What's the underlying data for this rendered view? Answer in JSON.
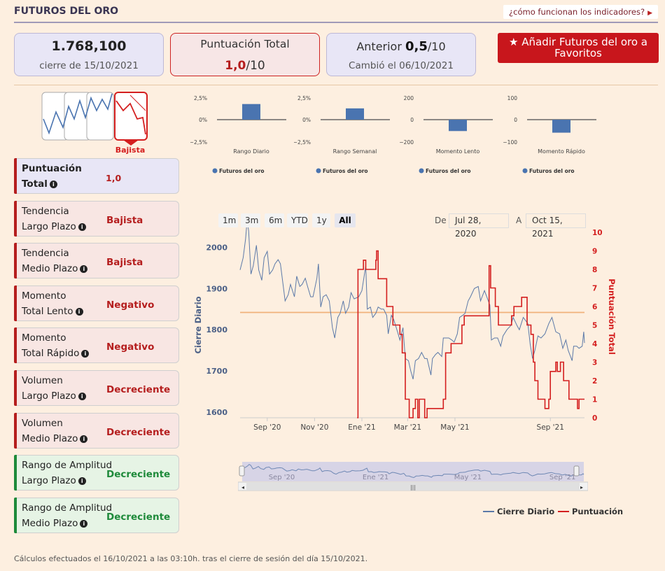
{
  "header": {
    "title": "FUTUROS DEL ORO",
    "help_link": "¿cómo funcionan los indicadores?"
  },
  "price_card": {
    "value": "1.768,100",
    "date": "cierre de 15/10/2021"
  },
  "score_card": {
    "label": "Puntuación Total",
    "value": "1,0",
    "max": "/10"
  },
  "previous_card": {
    "label": "Anterior",
    "value": "0,5",
    "max": "/10",
    "changed": "Cambió el 06/10/2021"
  },
  "favorite_button": {
    "label": "Añadir Futuros del oro a Favoritos"
  },
  "trend_icon": {
    "label": "Bajista"
  },
  "indicators": [
    {
      "line1": "Puntuación",
      "line2": "Total",
      "value": "1,0",
      "style": "total"
    },
    {
      "line1": "Tendencia",
      "line2": "Largo Plazo",
      "value": "Bajista",
      "style": "red"
    },
    {
      "line1": "Tendencia",
      "line2": "Medio Plazo",
      "value": "Bajista",
      "style": "red"
    },
    {
      "line1": "Momento",
      "line2": "Total Lento",
      "value": "Negativo",
      "style": "red"
    },
    {
      "line1": "Momento",
      "line2": "Total Rápido",
      "value": "Negativo",
      "style": "red"
    },
    {
      "line1": "Volumen",
      "line2": "Largo Plazo",
      "value": "Decreciente",
      "style": "red"
    },
    {
      "line1": "Volumen",
      "line2": "Medio Plazo",
      "value": "Decreciente",
      "style": "red"
    },
    {
      "line1": "Rango de Amplitud",
      "line2": "Largo Plazo",
      "value": "Decreciente",
      "style": "green"
    },
    {
      "line1": "Rango de Amplitud",
      "line2": "Medio Plazo",
      "value": "Decreciente",
      "style": "green"
    }
  ],
  "zoom_buttons": [
    "1m",
    "3m",
    "6m",
    "YTD",
    "1y",
    "All"
  ],
  "zoom_active": "All",
  "date_range": {
    "from_label": "De",
    "from": "Jul 28, 2020",
    "to_label": "A",
    "to": "Oct 15, 2021"
  },
  "legend": {
    "price": "Cierre Diario",
    "score": "Puntuación"
  },
  "footnote": "Cálculos efectuados el 16/10/2021 a las 03:10h. tras el cierre de sesión del día 15/10/2021.",
  "colors": {
    "price_line": "#5b79a8",
    "score_line": "#d41f1f",
    "bar": "#4a74b0",
    "reference": "#f0b27a"
  },
  "chart_data": [
    {
      "type": "bar",
      "categories": [
        "Rango Diario"
      ],
      "series": [
        {
          "name": "Futuros del oro",
          "values": [
            1.8
          ]
        }
      ],
      "ylim": [
        -2.5,
        2.5
      ],
      "yticks": [
        "2,5%",
        "0%",
        "−2,5%"
      ]
    },
    {
      "type": "bar",
      "categories": [
        "Rango Semanal"
      ],
      "series": [
        {
          "name": "Futuros del oro",
          "values": [
            1.3
          ]
        }
      ],
      "ylim": [
        -2.5,
        2.5
      ],
      "yticks": [
        "2,5%",
        "0%",
        "−2,5%"
      ]
    },
    {
      "type": "bar",
      "categories": [
        "Momento Lento"
      ],
      "series": [
        {
          "name": "Futuros del oro",
          "values": [
            -105
          ]
        }
      ],
      "ylim": [
        -200,
        200
      ],
      "yticks": [
        "200",
        "0",
        "−200"
      ]
    },
    {
      "type": "bar",
      "categories": [
        "Momento Rápido"
      ],
      "series": [
        {
          "name": "Futuros del oro",
          "values": [
            -60
          ]
        }
      ],
      "ylim": [
        -100,
        100
      ],
      "yticks": [
        "100",
        "0",
        "−100"
      ]
    },
    {
      "type": "line",
      "xlabels": [
        "Sep '20",
        "Nov '20",
        "Ene '21",
        "Mar '21",
        "May '21",
        "Sep '21"
      ],
      "xlabel_dates": [
        "2020-09-01",
        "2020-11-01",
        "2021-01-01",
        "2021-03-01",
        "2021-05-01",
        "2021-09-01"
      ],
      "xlim": [
        "2020-07-28",
        "2021-10-15"
      ],
      "ylabel": "Cierre Diario",
      "ylim": [
        1600,
        2050
      ],
      "yticks": [
        1600,
        1700,
        1800,
        1900,
        2000
      ],
      "y2label": "Puntuación Total",
      "y2lim": [
        0,
        10
      ],
      "y2ticks": [
        0,
        1,
        2,
        3,
        4,
        5,
        6,
        7,
        8,
        9,
        10
      ],
      "reference_line": 1842,
      "series": [
        {
          "name": "Cierre Diario",
          "axis": "left",
          "points": [
            [
              "2020-07-28",
              1945
            ],
            [
              "2020-08-01",
              1975
            ],
            [
              "2020-08-04",
              2020
            ],
            [
              "2020-08-06",
              2065
            ],
            [
              "2020-08-08",
              2040
            ],
            [
              "2020-08-11",
              1935
            ],
            [
              "2020-08-14",
              1955
            ],
            [
              "2020-08-18",
              2005
            ],
            [
              "2020-08-21",
              1945
            ],
            [
              "2020-08-25",
              1920
            ],
            [
              "2020-08-28",
              1975
            ],
            [
              "2020-09-01",
              1990
            ],
            [
              "2020-09-04",
              1935
            ],
            [
              "2020-09-08",
              1945
            ],
            [
              "2020-09-11",
              1960
            ],
            [
              "2020-09-15",
              1970
            ],
            [
              "2020-09-18",
              1960
            ],
            [
              "2020-09-22",
              1900
            ],
            [
              "2020-09-24",
              1870
            ],
            [
              "2020-09-28",
              1885
            ],
            [
              "2020-10-01",
              1910
            ],
            [
              "2020-10-06",
              1880
            ],
            [
              "2020-10-09",
              1930
            ],
            [
              "2020-10-13",
              1905
            ],
            [
              "2020-10-16",
              1910
            ],
            [
              "2020-10-20",
              1925
            ],
            [
              "2020-10-23",
              1905
            ],
            [
              "2020-10-27",
              1880
            ],
            [
              "2020-10-30",
              1880
            ],
            [
              "2020-11-04",
              1925
            ],
            [
              "2020-11-06",
              1960
            ],
            [
              "2020-11-09",
              1855
            ],
            [
              "2020-11-12",
              1880
            ],
            [
              "2020-11-16",
              1885
            ],
            [
              "2020-11-20",
              1870
            ],
            [
              "2020-11-24",
              1805
            ],
            [
              "2020-11-27",
              1780
            ],
            [
              "2020-12-01",
              1830
            ],
            [
              "2020-12-04",
              1840
            ],
            [
              "2020-12-08",
              1870
            ],
            [
              "2020-12-11",
              1840
            ],
            [
              "2020-12-15",
              1855
            ],
            [
              "2020-12-18",
              1890
            ],
            [
              "2020-12-22",
              1875
            ],
            [
              "2020-12-28",
              1880
            ],
            [
              "2021-01-01",
              1895
            ],
            [
              "2021-01-06",
              1955
            ],
            [
              "2021-01-08",
              1850
            ],
            [
              "2021-01-12",
              1855
            ],
            [
              "2021-01-15",
              1830
            ],
            [
              "2021-01-19",
              1840
            ],
            [
              "2021-01-22",
              1855
            ],
            [
              "2021-01-26",
              1850
            ],
            [
              "2021-01-29",
              1850
            ],
            [
              "2021-02-02",
              1835
            ],
            [
              "2021-02-04",
              1790
            ],
            [
              "2021-02-08",
              1835
            ],
            [
              "2021-02-11",
              1825
            ],
            [
              "2021-02-16",
              1795
            ],
            [
              "2021-02-19",
              1775
            ],
            [
              "2021-02-23",
              1805
            ],
            [
              "2021-02-26",
              1730
            ],
            [
              "2021-03-02",
              1725
            ],
            [
              "2021-03-05",
              1700
            ],
            [
              "2021-03-08",
              1680
            ],
            [
              "2021-03-11",
              1725
            ],
            [
              "2021-03-15",
              1730
            ],
            [
              "2021-03-19",
              1745
            ],
            [
              "2021-03-23",
              1730
            ],
            [
              "2021-03-26",
              1730
            ],
            [
              "2021-03-31",
              1690
            ],
            [
              "2021-04-02",
              1730
            ],
            [
              "2021-04-06",
              1740
            ],
            [
              "2021-04-09",
              1745
            ],
            [
              "2021-04-14",
              1735
            ],
            [
              "2021-04-16",
              1780
            ],
            [
              "2021-04-20",
              1780
            ],
            [
              "2021-04-23",
              1780
            ],
            [
              "2021-04-27",
              1775
            ],
            [
              "2021-04-30",
              1770
            ],
            [
              "2021-05-04",
              1790
            ],
            [
              "2021-05-07",
              1830
            ],
            [
              "2021-05-11",
              1835
            ],
            [
              "2021-05-14",
              1840
            ],
            [
              "2021-05-18",
              1870
            ],
            [
              "2021-05-21",
              1880
            ],
            [
              "2021-05-26",
              1900
            ],
            [
              "2021-05-31",
              1905
            ],
            [
              "2021-06-03",
              1870
            ],
            [
              "2021-06-08",
              1895
            ],
            [
              "2021-06-11",
              1880
            ],
            [
              "2021-06-15",
              1860
            ],
            [
              "2021-06-17",
              1775
            ],
            [
              "2021-06-21",
              1780
            ],
            [
              "2021-06-25",
              1780
            ],
            [
              "2021-06-29",
              1760
            ],
            [
              "2021-07-02",
              1785
            ],
            [
              "2021-07-07",
              1800
            ],
            [
              "2021-07-12",
              1810
            ],
            [
              "2021-07-15",
              1830
            ],
            [
              "2021-07-20",
              1810
            ],
            [
              "2021-07-23",
              1800
            ],
            [
              "2021-07-28",
              1830
            ],
            [
              "2021-08-03",
              1815
            ],
            [
              "2021-08-06",
              1765
            ],
            [
              "2021-08-09",
              1730
            ],
            [
              "2021-08-12",
              1750
            ],
            [
              "2021-08-16",
              1785
            ],
            [
              "2021-08-20",
              1780
            ],
            [
              "2021-08-25",
              1790
            ],
            [
              "2021-08-30",
              1815
            ],
            [
              "2021-09-03",
              1830
            ],
            [
              "2021-09-08",
              1795
            ],
            [
              "2021-09-13",
              1790
            ],
            [
              "2021-09-17",
              1755
            ],
            [
              "2021-09-21",
              1775
            ],
            [
              "2021-09-24",
              1750
            ],
            [
              "2021-09-29",
              1725
            ],
            [
              "2021-10-01",
              1760
            ],
            [
              "2021-10-05",
              1760
            ],
            [
              "2021-10-08",
              1755
            ],
            [
              "2021-10-12",
              1760
            ],
            [
              "2021-10-14",
              1795
            ],
            [
              "2021-10-15",
              1768
            ]
          ]
        },
        {
          "name": "Puntuación Total",
          "axis": "right",
          "step": true,
          "points": [
            [
              "2020-12-26",
              0
            ],
            [
              "2020-12-27",
              8
            ],
            [
              "2021-01-03",
              8.5
            ],
            [
              "2021-01-06",
              8
            ],
            [
              "2021-01-19",
              8.5
            ],
            [
              "2021-01-20",
              9
            ],
            [
              "2021-01-22",
              7.5
            ],
            [
              "2021-02-02",
              6
            ],
            [
              "2021-02-10",
              5
            ],
            [
              "2021-02-19",
              4.5
            ],
            [
              "2021-02-22",
              3.5
            ],
            [
              "2021-02-26",
              1
            ],
            [
              "2021-03-03",
              0
            ],
            [
              "2021-03-08",
              0.5
            ],
            [
              "2021-03-11",
              1
            ],
            [
              "2021-03-14",
              0
            ],
            [
              "2021-03-16",
              1
            ],
            [
              "2021-03-23",
              0
            ],
            [
              "2021-03-26",
              0.5
            ],
            [
              "2021-04-16",
              1
            ],
            [
              "2021-04-19",
              3.5
            ],
            [
              "2021-04-26",
              4
            ],
            [
              "2021-05-10",
              5
            ],
            [
              "2021-05-13",
              5.5
            ],
            [
              "2021-06-14",
              8.2
            ],
            [
              "2021-06-16",
              7
            ],
            [
              "2021-06-22",
              6
            ],
            [
              "2021-06-26",
              5
            ],
            [
              "2021-07-13",
              5.5
            ],
            [
              "2021-07-16",
              6
            ],
            [
              "2021-07-26",
              6.5
            ],
            [
              "2021-08-02",
              5
            ],
            [
              "2021-08-07",
              4.5
            ],
            [
              "2021-08-10",
              3
            ],
            [
              "2021-08-12",
              2
            ],
            [
              "2021-08-16",
              1
            ],
            [
              "2021-08-25",
              0.5
            ],
            [
              "2021-08-30",
              1
            ],
            [
              "2021-09-01",
              2.5
            ],
            [
              "2021-09-06",
              2.5
            ],
            [
              "2021-09-08",
              3
            ],
            [
              "2021-09-10",
              2.5
            ],
            [
              "2021-09-14",
              3
            ],
            [
              "2021-09-18",
              2
            ],
            [
              "2021-09-25",
              1
            ],
            [
              "2021-09-29",
              1
            ],
            [
              "2021-10-01",
              1
            ],
            [
              "2021-10-06",
              0.5
            ],
            [
              "2021-10-08",
              1
            ],
            [
              "2021-10-15",
              1
            ]
          ]
        }
      ]
    }
  ]
}
